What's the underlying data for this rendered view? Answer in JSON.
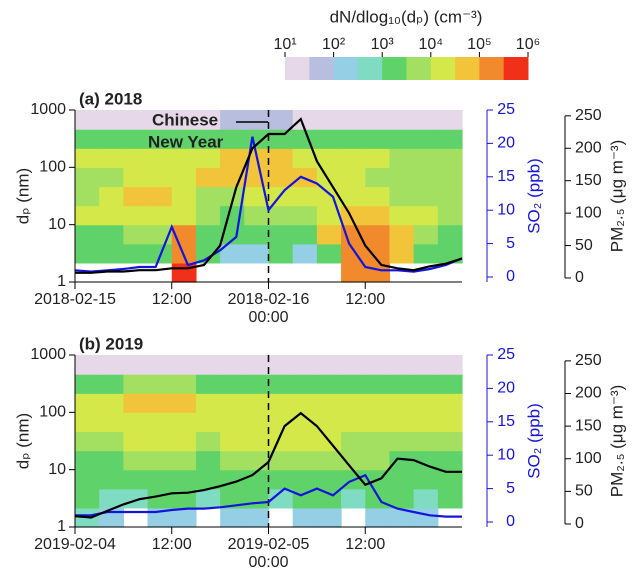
{
  "colorbar": {
    "label": "dN/dlog₁₀(dₚ) (cm⁻³)",
    "lim": [
      10,
      1000000
    ],
    "log": true,
    "ticks": [
      {
        "value": 10,
        "label": "10¹"
      },
      {
        "value": 100,
        "label": "10²"
      },
      {
        "value": 1000,
        "label": "10³"
      },
      {
        "value": 10000,
        "label": "10⁴"
      },
      {
        "value": 100000,
        "label": "10⁵"
      },
      {
        "value": 1000000,
        "label": "10⁶"
      }
    ],
    "colors": [
      "#e6d8e8",
      "#b8bedd",
      "#94cfe6",
      "#7fdcc2",
      "#5fd36a",
      "#a3e062",
      "#d4e84a",
      "#f2c43a",
      "#f08a2c",
      "#f03018"
    ]
  },
  "chart_data": [
    {
      "type": "heatmap-lines",
      "title": "(a) 2018",
      "ylabel": "dₚ (nm)",
      "y2label": "SO₂ (ppb)",
      "y3label": "PM₂.₅ (μg m⁻³)",
      "annotation_lines": [
        "Chinese",
        "New Year"
      ],
      "ref_x": "2018-02-16T00:00",
      "xlim": [
        "2018-02-15T00:00",
        "2018-02-17T00:00"
      ],
      "xticks": [
        {
          "value": "2018-02-15T00:00",
          "label": "2018-02-15"
        },
        {
          "value": "2018-02-15T12:00",
          "label": "12:00"
        },
        {
          "value": "2018-02-16T00:00",
          "label": "2018-02-16",
          "sublabel": "00:00"
        },
        {
          "value": "2018-02-16T12:00",
          "label": "12:00"
        }
      ],
      "ylim": [
        1,
        1000
      ],
      "log_y": true,
      "yticks": [
        1,
        10,
        100,
        1000
      ],
      "y2lim": [
        -0.75,
        25
      ],
      "y2ticks": [
        0,
        5,
        10,
        15,
        20,
        25
      ],
      "y3lim": [
        -6.2,
        259
      ],
      "y3ticks": [
        0,
        50,
        100,
        150,
        200,
        250
      ],
      "z": [
        [
          null,
          null,
          null,
          null,
          500000.0,
          null,
          null,
          null,
          null,
          null,
          null,
          100000.0,
          200000.0,
          null,
          null,
          null
        ],
        [
          1000.0,
          1000.0,
          1000.0,
          3000.0,
          300000.0,
          1000.0,
          300.0,
          300.0,
          1000.0,
          300.0,
          1000.0,
          200000.0,
          300000.0,
          50000.0,
          3000.0,
          3000.0
        ],
        [
          3000.0,
          3000.0,
          5000.0,
          5000.0,
          100000.0,
          3000.0,
          1000.0,
          3000.0,
          3000.0,
          3000.0,
          50000.0,
          100000.0,
          100000.0,
          50000.0,
          5000.0,
          3000.0
        ],
        [
          10000.0,
          10000.0,
          10000.0,
          10000.0,
          10000.0,
          5000.0,
          3000.0,
          5000.0,
          5000.0,
          5000.0,
          10000.0,
          40000.0,
          40000.0,
          10000.0,
          10000.0,
          5000.0
        ],
        [
          5000.0,
          10000.0,
          40000.0,
          40000.0,
          10000.0,
          5000.0,
          5000.0,
          10000.0,
          10000.0,
          10000.0,
          10000.0,
          10000.0,
          10000.0,
          5000.0,
          5000.0,
          5000.0
        ],
        [
          5000.0,
          5000.0,
          10000.0,
          10000.0,
          10000.0,
          40000.0,
          50000.0,
          50000.0,
          40000.0,
          40000.0,
          10000.0,
          10000.0,
          5000.0,
          5000.0,
          5000.0,
          5000.0
        ],
        [
          10000.0,
          10000.0,
          10000.0,
          10000.0,
          10000.0,
          10000.0,
          40000.0,
          40000.0,
          40000.0,
          10000.0,
          10000.0,
          10000.0,
          10000.0,
          5000.0,
          5000.0,
          5000.0
        ],
        [
          1500.0,
          1500.0,
          1500.0,
          1500.0,
          1500.0,
          1500.0,
          3000.0,
          3000.0,
          3000.0,
          1500.0,
          1500.0,
          1500.0,
          1500.0,
          1500.0,
          1500.0,
          1500.0
        ],
        [
          30.0,
          30.0,
          30.0,
          30.0,
          30.0,
          30.0,
          50.0,
          50.0,
          50.0,
          30.0,
          30.0,
          30.0,
          30.0,
          30.0,
          30.0,
          30.0
        ]
      ],
      "x": [
        "2018-02-15T00:00",
        "2018-02-15T02:00",
        "2018-02-15T04:00",
        "2018-02-15T06:00",
        "2018-02-15T08:00",
        "2018-02-15T10:00",
        "2018-02-15T12:00",
        "2018-02-15T14:00",
        "2018-02-15T16:00",
        "2018-02-15T18:00",
        "2018-02-15T20:00",
        "2018-02-15T22:00",
        "2018-02-16T00:00",
        "2018-02-16T02:00",
        "2018-02-16T04:00",
        "2018-02-16T06:00",
        "2018-02-16T08:00",
        "2018-02-16T10:00",
        "2018-02-16T12:00",
        "2018-02-16T14:00",
        "2018-02-16T16:00",
        "2018-02-16T18:00",
        "2018-02-16T20:00",
        "2018-02-16T22:00",
        "2018-02-17T00:00"
      ],
      "series": [
        {
          "color": "#1414dc",
          "axis": "y2",
          "values": [
            1,
            0.8,
            1,
            1.2,
            1.5,
            1.5,
            7.5,
            1.8,
            2.5,
            4,
            6,
            21,
            10,
            13,
            15,
            14,
            12,
            5,
            1.5,
            1,
            1,
            0.8,
            1.2,
            1.8,
            2.8
          ]
        },
        {
          "color": "#000000",
          "axis": "y3",
          "values": [
            8,
            8,
            10,
            10,
            12,
            12,
            15,
            15,
            20,
            50,
            140,
            200,
            222,
            222,
            245,
            180,
            140,
            100,
            50,
            20,
            15,
            12,
            18,
            22,
            30
          ]
        }
      ]
    },
    {
      "type": "heatmap-lines",
      "title": "(b) 2019",
      "ylabel": "dₚ (nm)",
      "y2label": "SO₂ (ppb)",
      "y3label": "PM₂.₅ (μg m⁻³)",
      "ref_x": "2019-02-05T00:00",
      "xlim": [
        "2019-02-04T00:00",
        "2019-02-06T00:00"
      ],
      "xticks": [
        {
          "value": "2019-02-04T00:00",
          "label": "2019-02-04"
        },
        {
          "value": "2019-02-04T12:00",
          "label": "12:00"
        },
        {
          "value": "2019-02-05T00:00",
          "label": "2019-02-05",
          "sublabel": "00:00"
        },
        {
          "value": "2019-02-05T12:00",
          "label": "12:00"
        }
      ],
      "ylim": [
        1,
        1000
      ],
      "log_y": true,
      "yticks": [
        1,
        10,
        100,
        1000
      ],
      "y2lim": [
        -0.75,
        25
      ],
      "y2ticks": [
        0,
        5,
        10,
        15,
        20,
        25
      ],
      "y3lim": [
        -4.6,
        259
      ],
      "y3ticks": [
        0,
        50,
        100,
        150,
        200,
        250
      ],
      "z": [
        [
          500.0,
          300.0,
          null,
          300.0,
          300.0,
          null,
          300.0,
          300.0,
          null,
          300.0,
          300.0,
          null,
          300.0,
          300.0,
          300.0,
          null
        ],
        [
          1000.0,
          500.0,
          500.0,
          1000.0,
          1000.0,
          500.0,
          1000.0,
          1000.0,
          500.0,
          1000.0,
          1000.0,
          500.0,
          1000.0,
          1000.0,
          500.0,
          1000.0
        ],
        [
          1500.0,
          1000.0,
          1500.0,
          1500.0,
          3000.0,
          1500.0,
          1500.0,
          1500.0,
          3000.0,
          3000.0,
          1500.0,
          1500.0,
          3000.0,
          1500.0,
          1500.0,
          1500.0
        ],
        [
          3000.0,
          3000.0,
          5000.0,
          5000.0,
          5000.0,
          3000.0,
          5000.0,
          5000.0,
          5000.0,
          5000.0,
          5000.0,
          5000.0,
          5000.0,
          3000.0,
          3000.0,
          3000.0
        ],
        [
          5000.0,
          5000.0,
          10000.0,
          10000.0,
          10000.0,
          5000.0,
          10000.0,
          10000.0,
          10000.0,
          10000.0,
          10000.0,
          5000.0,
          5000.0,
          5000.0,
          5000.0,
          5000.0
        ],
        [
          10000.0,
          10000.0,
          10000.0,
          10000.0,
          10000.0,
          10000.0,
          10000.0,
          10000.0,
          10000.0,
          10000.0,
          10000.0,
          10000.0,
          10000.0,
          10000.0,
          10000.0,
          10000.0
        ],
        [
          10000.0,
          10000.0,
          40000.0,
          40000.0,
          40000.0,
          10000.0,
          10000.0,
          10000.0,
          10000.0,
          10000.0,
          10000.0,
          10000.0,
          10000.0,
          10000.0,
          10000.0,
          10000.0
        ],
        [
          3000.0,
          3000.0,
          5000.0,
          5000.0,
          5000.0,
          3000.0,
          3000.0,
          3000.0,
          3000.0,
          3000.0,
          3000.0,
          3000.0,
          3000.0,
          3000.0,
          3000.0,
          3000.0
        ],
        [
          30.0,
          30.0,
          30.0,
          30.0,
          30.0,
          30.0,
          30.0,
          30.0,
          30.0,
          30.0,
          30.0,
          30.0,
          30.0,
          30.0,
          30.0,
          30.0
        ]
      ],
      "x": [
        "2019-02-04T00:00",
        "2019-02-04T02:00",
        "2019-02-04T04:00",
        "2019-02-04T06:00",
        "2019-02-04T08:00",
        "2019-02-04T10:00",
        "2019-02-04T12:00",
        "2019-02-04T14:00",
        "2019-02-04T16:00",
        "2019-02-04T18:00",
        "2019-02-04T20:00",
        "2019-02-04T22:00",
        "2019-02-05T00:00",
        "2019-02-05T02:00",
        "2019-02-05T04:00",
        "2019-02-05T06:00",
        "2019-02-05T08:00",
        "2019-02-05T10:00",
        "2019-02-05T12:00",
        "2019-02-05T14:00",
        "2019-02-05T16:00",
        "2019-02-05T18:00",
        "2019-02-05T20:00",
        "2019-02-05T22:00",
        "2019-02-06T00:00"
      ],
      "series": [
        {
          "color": "#1414dc",
          "axis": "y2",
          "values": [
            1,
            1,
            1.5,
            1.5,
            1.5,
            1.5,
            1.8,
            2,
            2,
            2.2,
            2.5,
            2.8,
            3,
            5,
            4,
            5,
            4,
            6,
            7,
            3,
            2,
            1.5,
            1,
            0.8,
            0.8
          ]
        },
        {
          "color": "#000000",
          "axis": "y3",
          "values": [
            12,
            10,
            20,
            30,
            38,
            42,
            47,
            48,
            52,
            58,
            65,
            75,
            95,
            150,
            170,
            150,
            120,
            90,
            60,
            70,
            100,
            98,
            88,
            80,
            80
          ]
        }
      ]
    }
  ]
}
